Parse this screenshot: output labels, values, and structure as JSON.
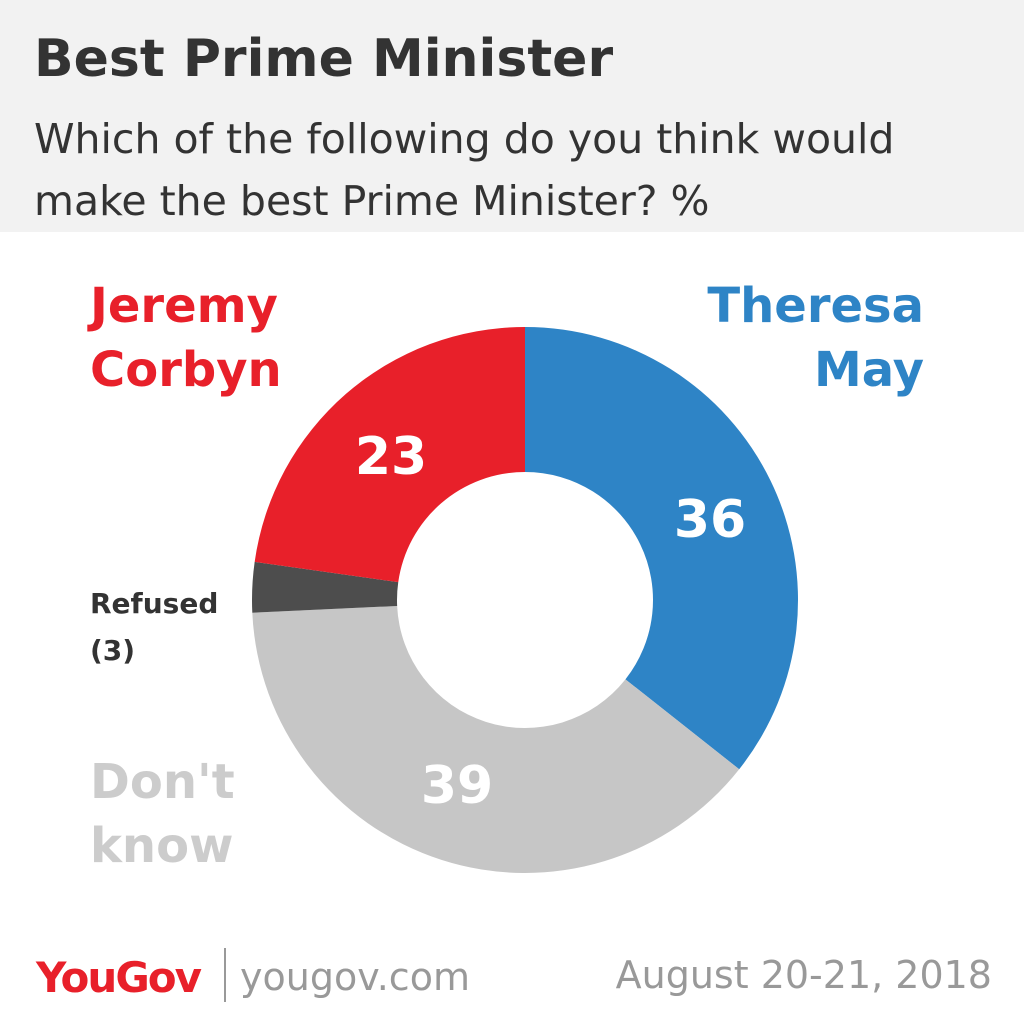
{
  "chart_data": {
    "type": "donut",
    "title": "Best Prime Minister",
    "subtitle": "Which of the following do you think would make the best Prime Minister? %",
    "categories": [
      "Theresa May",
      "Don't know",
      "Refused",
      "Jeremy Corbyn"
    ],
    "values": [
      36,
      39,
      3,
      23
    ],
    "value_labels": [
      "36",
      "39",
      "(3)",
      "23"
    ],
    "colors": [
      "#2e84c6",
      "#c6c6c6",
      "#4d4d4d",
      "#e8202a"
    ],
    "label_colors": [
      "#2e84c6",
      "#cccccc",
      "#333333",
      "#e8202a"
    ],
    "brand": "YouGov",
    "website": "yougov.com",
    "date": "August 20-21, 2018"
  }
}
